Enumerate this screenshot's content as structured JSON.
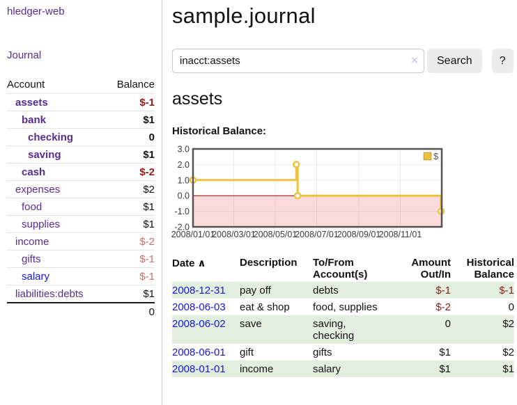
{
  "colors": {
    "purple": "#552d91",
    "blue": "#1515dd",
    "neg-strong": "#8e1a1a",
    "neg-soft": "#c36f6f",
    "row-green": "#e3efde",
    "gold": "#edc240",
    "chart-pink": "#fadada",
    "zero-red": "#a00000",
    "chart-border": "#545454"
  },
  "sidebar": {
    "brand": "hledger-web",
    "nav": [
      {
        "label": "Journal"
      }
    ],
    "accounts_table": {
      "headers": {
        "account": "Account",
        "balance": "Balance"
      },
      "rows": [
        {
          "name": "assets",
          "depth": 1,
          "balance": "$-1",
          "bold": true,
          "neg": "strong"
        },
        {
          "name": "bank",
          "depth": 2,
          "balance": "$1",
          "bold": true
        },
        {
          "name": "checking",
          "depth": 3,
          "balance": "0",
          "bold": true
        },
        {
          "name": "saving",
          "depth": 3,
          "balance": "$1",
          "bold": true
        },
        {
          "name": "cash",
          "depth": 2,
          "balance": "$-2",
          "bold": true,
          "neg": "strong"
        },
        {
          "name": "expenses",
          "depth": 1,
          "balance": "$2"
        },
        {
          "name": "food",
          "depth": 2,
          "balance": "$1"
        },
        {
          "name": "supplies",
          "depth": 2,
          "balance": "$1"
        },
        {
          "name": "income",
          "depth": 1,
          "balance": "$-2",
          "neg": "soft"
        },
        {
          "name": "gifts",
          "depth": 2,
          "balance": "$-1",
          "neg": "soft"
        },
        {
          "name": "salary",
          "depth": 2,
          "balance": "$-1",
          "neg": "soft",
          "link_style": "blue"
        },
        {
          "name": "liabilities:debts",
          "depth": 1,
          "balance": "$1"
        }
      ],
      "total": "0"
    }
  },
  "main": {
    "title": "sample.journal",
    "search": {
      "value": "inacct:assets",
      "clear_icon": "×",
      "button": "Search",
      "help_button": "?"
    },
    "account_heading": "assets",
    "chart_label": "Historical Balance:"
  },
  "chart_data": {
    "type": "line",
    "step": true,
    "title": "Historical Balance",
    "legend": [
      {
        "label": "$",
        "color": "#edc240"
      }
    ],
    "legend_position": "top-right",
    "x_start": "2008-01-01",
    "x_end": "2009-01-01",
    "series": [
      {
        "name": "$",
        "dates": [
          "2008-01-01",
          "2008-06-01",
          "2008-06-03",
          "2008-12-31"
        ],
        "values": [
          1,
          2,
          0,
          -1
        ]
      }
    ],
    "yticks": [
      "3.0",
      "2.0",
      "1.0",
      "0.0",
      "-1.0",
      "-2.0"
    ],
    "ylim": [
      -2,
      3
    ],
    "xticks": [
      {
        "date": "2008-01-01",
        "label": "2008/01/01"
      },
      {
        "date": "2008-03-01",
        "label": "2008/03/01"
      },
      {
        "date": "2008-05-01",
        "label": "2008/05/01"
      },
      {
        "date": "2008-07-01",
        "label": "2008/07/01"
      },
      {
        "date": "2008-09-01",
        "label": "2008/09/01"
      },
      {
        "date": "2008-11-01",
        "label": "2008/11/01"
      }
    ],
    "grid": true,
    "negative_region_fill": "#fadada",
    "zero_line_color": "#a00000"
  },
  "register_table": {
    "headers": [
      "Date",
      "Description",
      "To/From Account(s)",
      "Amount Out/In",
      "Historical Balance"
    ],
    "sort_icon": "∧",
    "rows": [
      {
        "date": "2008-12-31",
        "description": "pay off",
        "accounts": [
          "debts"
        ],
        "amount": "$-1",
        "amount_neg": true,
        "balance": "$-1",
        "balance_neg": true
      },
      {
        "date": "2008-06-03",
        "description": "eat & shop",
        "accounts": [
          "food",
          "supplies"
        ],
        "amount": "$-2",
        "amount_neg": true,
        "balance": "0",
        "balance_neg": false
      },
      {
        "date": "2008-06-02",
        "description": "save",
        "accounts": [
          "saving",
          "checking"
        ],
        "amount": "0",
        "amount_neg": false,
        "balance": "$2",
        "balance_neg": false
      },
      {
        "date": "2008-06-01",
        "description": "gift",
        "accounts": [
          "gifts"
        ],
        "amount": "$1",
        "amount_neg": false,
        "balance": "$2",
        "balance_neg": false
      },
      {
        "date": "2008-01-01",
        "description": "income",
        "accounts": [
          "salary"
        ],
        "amount": "$1",
        "amount_neg": false,
        "balance": "$1",
        "balance_neg": false
      }
    ]
  }
}
